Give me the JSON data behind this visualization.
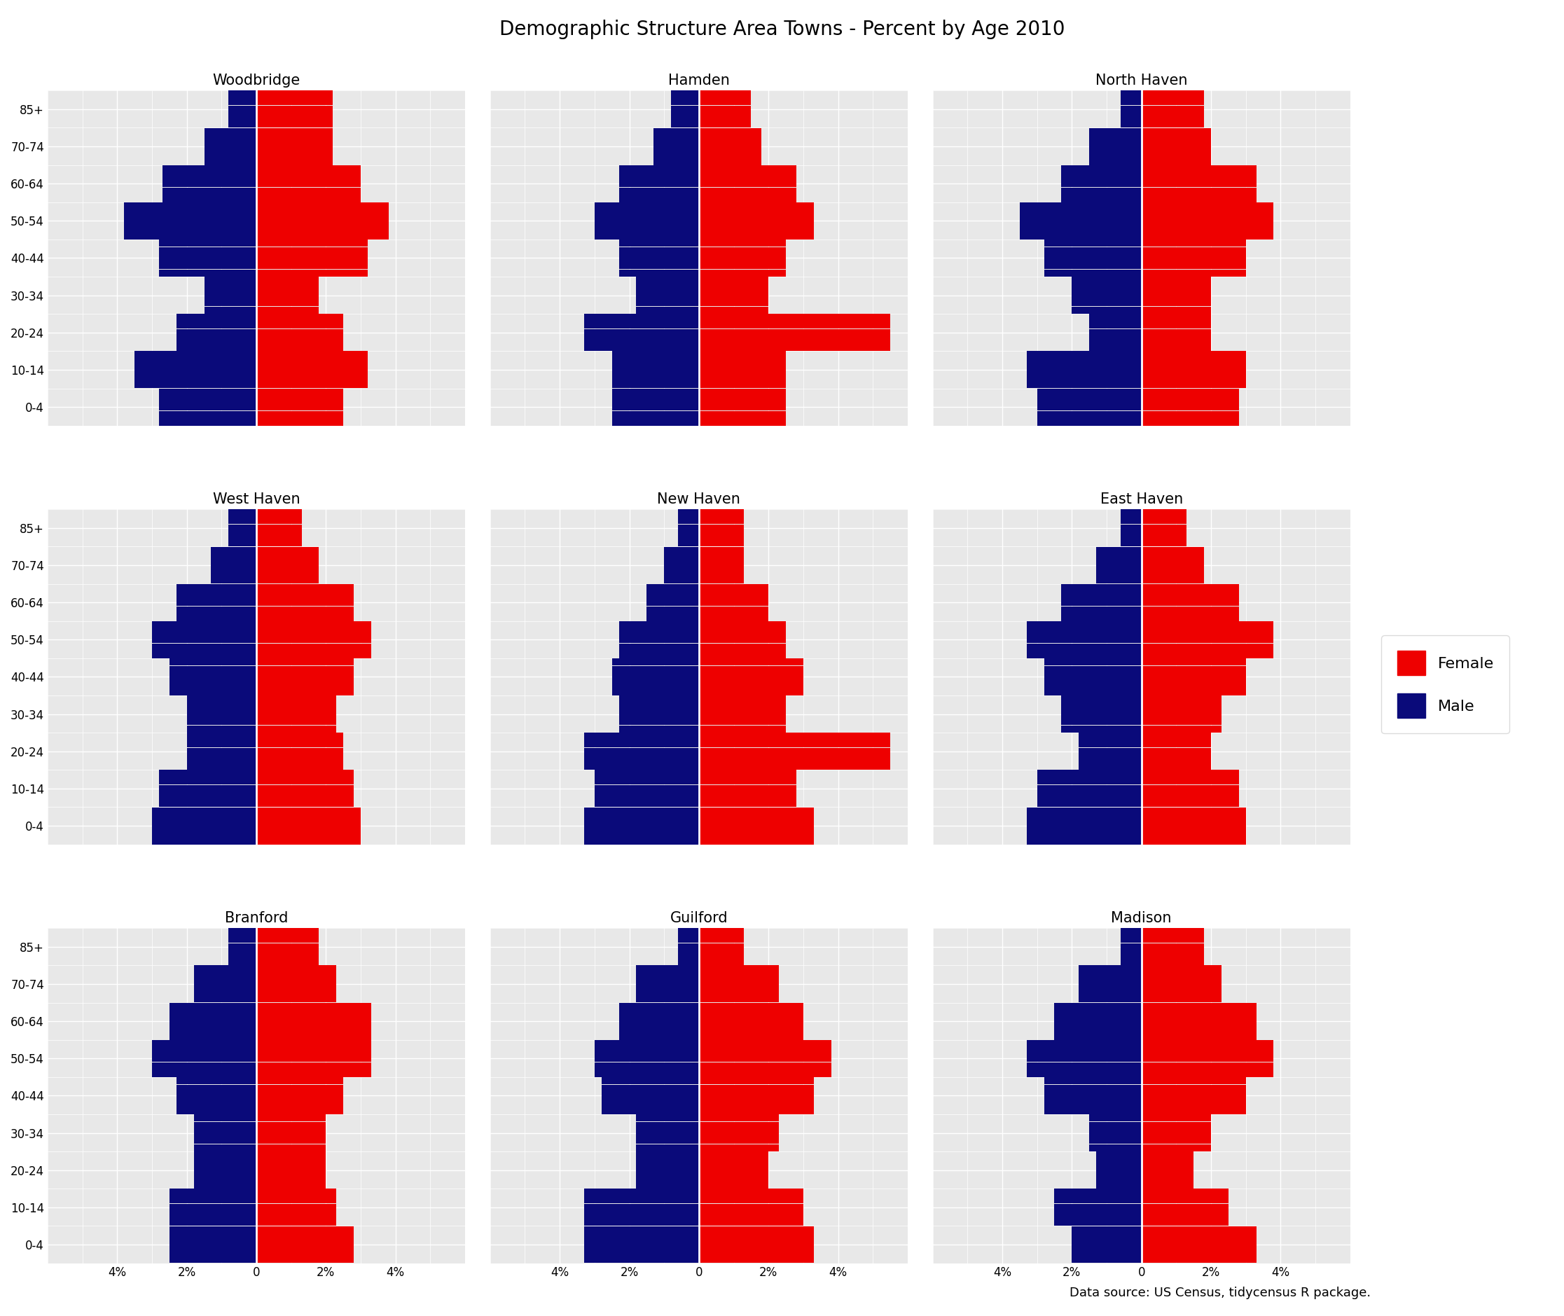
{
  "title": "Demographic Structure Area Towns - Percent by Age 2010",
  "caption": "Data source: US Census, tidycensus R package.",
  "female_color": "#EE0000",
  "male_color": "#0A0A7A",
  "background_color": "#E8E8E8",
  "panel_background": "#E8E8E8",
  "grid_color": "#FFFFFF",
  "age_groups": [
    "85+",
    "70-74",
    "60-64",
    "50-54",
    "40-44",
    "30-34",
    "20-24",
    "10-14",
    "0-4"
  ],
  "towns_grid": [
    [
      "Woodbridge",
      "Hamden",
      "North Haven"
    ],
    [
      "West Haven",
      "New Haven",
      "East Haven"
    ],
    [
      "Branford",
      "Guilford",
      "Madison"
    ]
  ],
  "data": {
    "Woodbridge": {
      "male": [
        0.8,
        1.5,
        2.7,
        3.8,
        2.8,
        1.5,
        2.3,
        3.5,
        2.8
      ],
      "female": [
        2.2,
        2.2,
        3.0,
        3.8,
        3.2,
        1.8,
        2.5,
        3.2,
        2.5
      ]
    },
    "Hamden": {
      "male": [
        0.8,
        1.3,
        2.3,
        3.0,
        2.3,
        1.8,
        3.3,
        2.5,
        2.5
      ],
      "female": [
        1.5,
        1.8,
        2.8,
        3.3,
        2.5,
        2.0,
        5.5,
        2.5,
        2.5
      ]
    },
    "North Haven": {
      "male": [
        0.6,
        1.5,
        2.3,
        3.5,
        2.8,
        2.0,
        1.5,
        3.3,
        3.0
      ],
      "female": [
        1.8,
        2.0,
        3.3,
        3.8,
        3.0,
        2.0,
        2.0,
        3.0,
        2.8
      ]
    },
    "West Haven": {
      "male": [
        0.8,
        1.3,
        2.3,
        3.0,
        2.5,
        2.0,
        2.0,
        2.8,
        3.0
      ],
      "female": [
        1.3,
        1.8,
        2.8,
        3.3,
        2.8,
        2.3,
        2.5,
        2.8,
        3.0
      ]
    },
    "New Haven": {
      "male": [
        0.6,
        1.0,
        1.5,
        2.3,
        2.5,
        2.3,
        3.3,
        3.0,
        3.3
      ],
      "female": [
        1.3,
        1.3,
        2.0,
        2.5,
        3.0,
        2.5,
        5.5,
        2.8,
        3.3
      ]
    },
    "East Haven": {
      "male": [
        0.6,
        1.3,
        2.3,
        3.3,
        2.8,
        2.3,
        1.8,
        3.0,
        3.3
      ],
      "female": [
        1.3,
        1.8,
        2.8,
        3.8,
        3.0,
        2.3,
        2.0,
        2.8,
        3.0
      ]
    },
    "Branford": {
      "male": [
        0.8,
        1.8,
        2.5,
        3.0,
        2.3,
        1.8,
        1.8,
        2.5,
        2.5
      ],
      "female": [
        1.8,
        2.3,
        3.3,
        3.3,
        2.5,
        2.0,
        2.0,
        2.3,
        2.8
      ]
    },
    "Guilford": {
      "male": [
        0.6,
        1.8,
        2.3,
        3.0,
        2.8,
        1.8,
        1.8,
        3.3,
        3.3
      ],
      "female": [
        1.3,
        2.3,
        3.0,
        3.8,
        3.3,
        2.3,
        2.0,
        3.0,
        3.3
      ]
    },
    "Madison": {
      "male": [
        0.6,
        1.8,
        2.5,
        3.3,
        2.8,
        1.5,
        1.3,
        2.5,
        2.0
      ],
      "female": [
        1.8,
        2.3,
        3.3,
        3.8,
        3.0,
        2.0,
        1.5,
        2.5,
        3.3
      ]
    }
  },
  "xlim": 6.0,
  "xticks": [
    -4,
    -2,
    0,
    2,
    4
  ],
  "xticklabels": [
    "4%",
    "2%",
    "0",
    "2%",
    "4%"
  ],
  "n_sub_bars": 5
}
